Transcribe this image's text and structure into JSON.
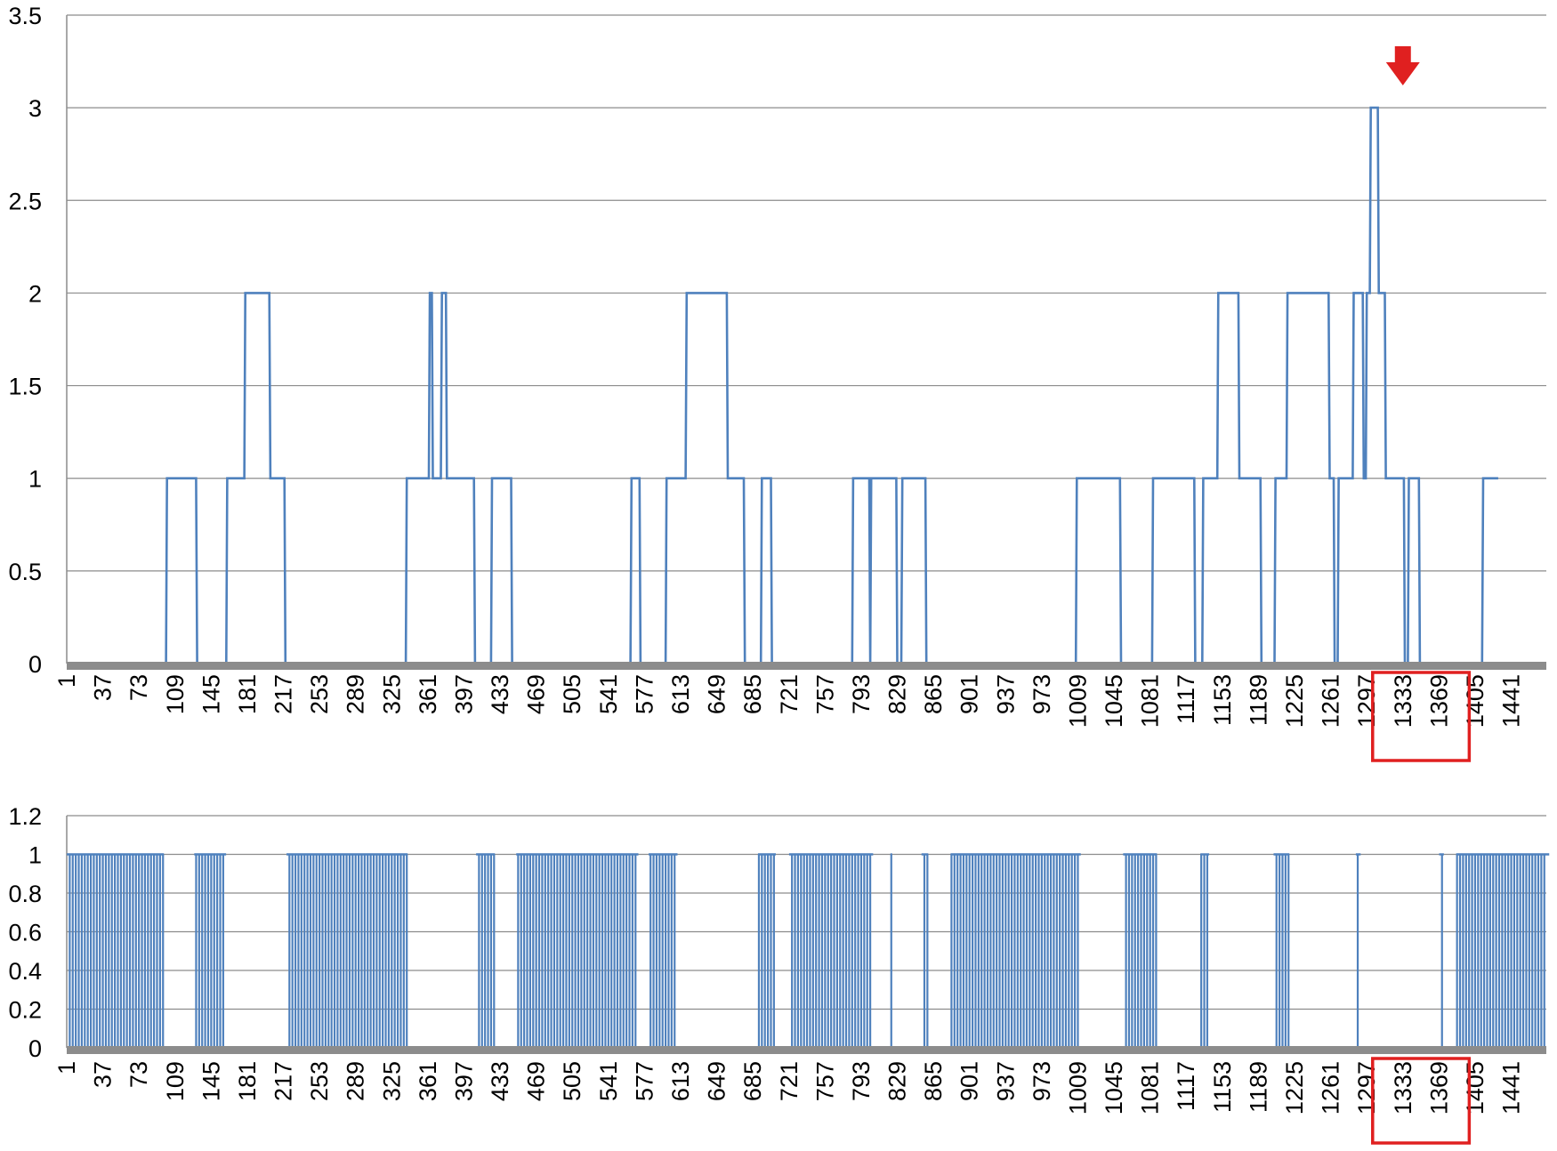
{
  "colors": {
    "series": "#4f81bd",
    "grid": "#8c8c8c",
    "axis": "#8c8c8c",
    "highlight": "#e02020",
    "text": "#000000"
  },
  "chart_data": [
    {
      "type": "line",
      "title": "",
      "xlabel": "",
      "ylabel": "",
      "line_style": "step",
      "x_range": [
        1,
        1476
      ],
      "ylim": [
        0,
        3.5
      ],
      "y_ticks": [
        0,
        0.5,
        1,
        1.5,
        2,
        2.5,
        3,
        3.5
      ],
      "y_tick_labels": [
        "0",
        "0.5",
        "1",
        "1.5",
        "2",
        "2.5",
        "3",
        "3.5"
      ],
      "x_tick_labels": [
        "1",
        "37",
        "73",
        "109",
        "145",
        "181",
        "217",
        "253",
        "289",
        "325",
        "361",
        "397",
        "433",
        "469",
        "505",
        "541",
        "577",
        "613",
        "649",
        "685",
        "721",
        "757",
        "793",
        "829",
        "865",
        "901",
        "937",
        "973",
        "1009",
        "1045",
        "1081",
        "1117",
        "1153",
        "1189",
        "1225",
        "1261",
        "1297",
        "1333",
        "1369",
        "1405",
        "1441"
      ],
      "grid": true,
      "legend": "none",
      "highlight_box": [
        "1333",
        "1369"
      ],
      "arrow_at": 1333,
      "series": [
        {
          "points": [
            [
              1,
              0
            ],
            [
              100,
              0
            ],
            [
              101,
              1
            ],
            [
              130,
              1
            ],
            [
              131,
              0
            ],
            [
              160,
              0
            ],
            [
              161,
              1
            ],
            [
              178,
              1
            ],
            [
              179,
              2
            ],
            [
              203,
              2
            ],
            [
              204,
              1
            ],
            [
              218,
              1
            ],
            [
              219,
              0
            ],
            [
              339,
              0
            ],
            [
              340,
              1
            ],
            [
              362,
              1
            ],
            [
              363,
              2
            ],
            [
              365,
              2
            ],
            [
              366,
              1
            ],
            [
              374,
              1
            ],
            [
              375,
              2
            ],
            [
              379,
              2
            ],
            [
              380,
              1
            ],
            [
              407,
              1
            ],
            [
              408,
              0
            ],
            [
              424,
              0
            ],
            [
              425,
              1
            ],
            [
              444,
              1
            ],
            [
              445,
              0
            ],
            [
              563,
              0
            ],
            [
              564,
              1
            ],
            [
              572,
              1
            ],
            [
              573,
              0
            ],
            [
              598,
              0
            ],
            [
              599,
              1
            ],
            [
              618,
              1
            ],
            [
              619,
              2
            ],
            [
              659,
              2
            ],
            [
              660,
              1
            ],
            [
              676,
              1
            ],
            [
              677,
              0
            ],
            [
              693,
              0
            ],
            [
              694,
              1
            ],
            [
              703,
              1
            ],
            [
              704,
              0
            ],
            [
              784,
              0
            ],
            [
              785,
              1
            ],
            [
              801,
              1
            ],
            [
              802,
              0
            ],
            [
              803,
              1
            ],
            [
              828,
              1
            ],
            [
              829,
              0
            ],
            [
              833,
              0
            ],
            [
              834,
              1
            ],
            [
              857,
              1
            ],
            [
              858,
              0
            ],
            [
              1007,
              0
            ],
            [
              1008,
              1
            ],
            [
              1051,
              1
            ],
            [
              1052,
              0
            ],
            [
              1083,
              0
            ],
            [
              1084,
              1
            ],
            [
              1125,
              1
            ],
            [
              1126,
              0
            ],
            [
              1133,
              0
            ],
            [
              1134,
              1
            ],
            [
              1148,
              1
            ],
            [
              1149,
              2
            ],
            [
              1169,
              2
            ],
            [
              1170,
              1
            ],
            [
              1191,
              1
            ],
            [
              1192,
              0
            ],
            [
              1205,
              0
            ],
            [
              1206,
              1
            ],
            [
              1217,
              1
            ],
            [
              1218,
              2
            ],
            [
              1259,
              2
            ],
            [
              1260,
              1
            ],
            [
              1264,
              1
            ],
            [
              1265,
              0
            ],
            [
              1268,
              0
            ],
            [
              1269,
              1
            ],
            [
              1283,
              1
            ],
            [
              1284,
              2
            ],
            [
              1293,
              2
            ],
            [
              1294,
              1
            ],
            [
              1296,
              1
            ],
            [
              1297,
              2
            ],
            [
              1300,
              2
            ],
            [
              1301,
              3
            ],
            [
              1308,
              3
            ],
            [
              1309,
              2
            ],
            [
              1315,
              2
            ],
            [
              1316,
              1
            ],
            [
              1334,
              1
            ],
            [
              1335,
              0
            ],
            [
              1338,
              0
            ],
            [
              1339,
              1
            ],
            [
              1349,
              1
            ],
            [
              1350,
              0
            ],
            [
              1412,
              0
            ],
            [
              1413,
              1
            ],
            [
              1428,
              1
            ]
          ]
        }
      ]
    },
    {
      "type": "bar",
      "title": "",
      "xlabel": "",
      "ylabel": "",
      "x_range": [
        1,
        1476
      ],
      "ylim": [
        0,
        1.2
      ],
      "y_ticks": [
        0,
        0.2,
        0.4,
        0.6,
        0.8,
        1,
        1.2
      ],
      "y_tick_labels": [
        "0",
        "0.2",
        "0.4",
        "0.6",
        "0.8",
        "1",
        "1.2"
      ],
      "x_tick_labels": [
        "1",
        "37",
        "73",
        "109",
        "145",
        "181",
        "217",
        "253",
        "289",
        "325",
        "361",
        "397",
        "433",
        "469",
        "505",
        "541",
        "577",
        "613",
        "649",
        "685",
        "721",
        "757",
        "793",
        "829",
        "865",
        "901",
        "937",
        "973",
        "1009",
        "1045",
        "1081",
        "1117",
        "1153",
        "1189",
        "1225",
        "1261",
        "1297",
        "1333",
        "1369",
        "1405",
        "1441"
      ],
      "grid": true,
      "legend": "none",
      "highlight_box": [
        "1333",
        "1369"
      ],
      "value_one_ranges": [
        [
          2,
          97
        ],
        [
          129,
          159
        ],
        [
          221,
          340
        ],
        [
          410,
          427
        ],
        [
          450,
          570
        ],
        [
          582,
          609
        ],
        [
          691,
          707
        ],
        [
          722,
          804
        ],
        [
          823,
          823
        ],
        [
          854,
          859
        ],
        [
          883,
          1011
        ],
        [
          1055,
          1087
        ],
        [
          1132,
          1139
        ],
        [
          1205,
          1219
        ],
        [
          1287,
          1290
        ],
        [
          1370,
          1373
        ],
        [
          1387,
          1478
        ]
      ]
    }
  ]
}
